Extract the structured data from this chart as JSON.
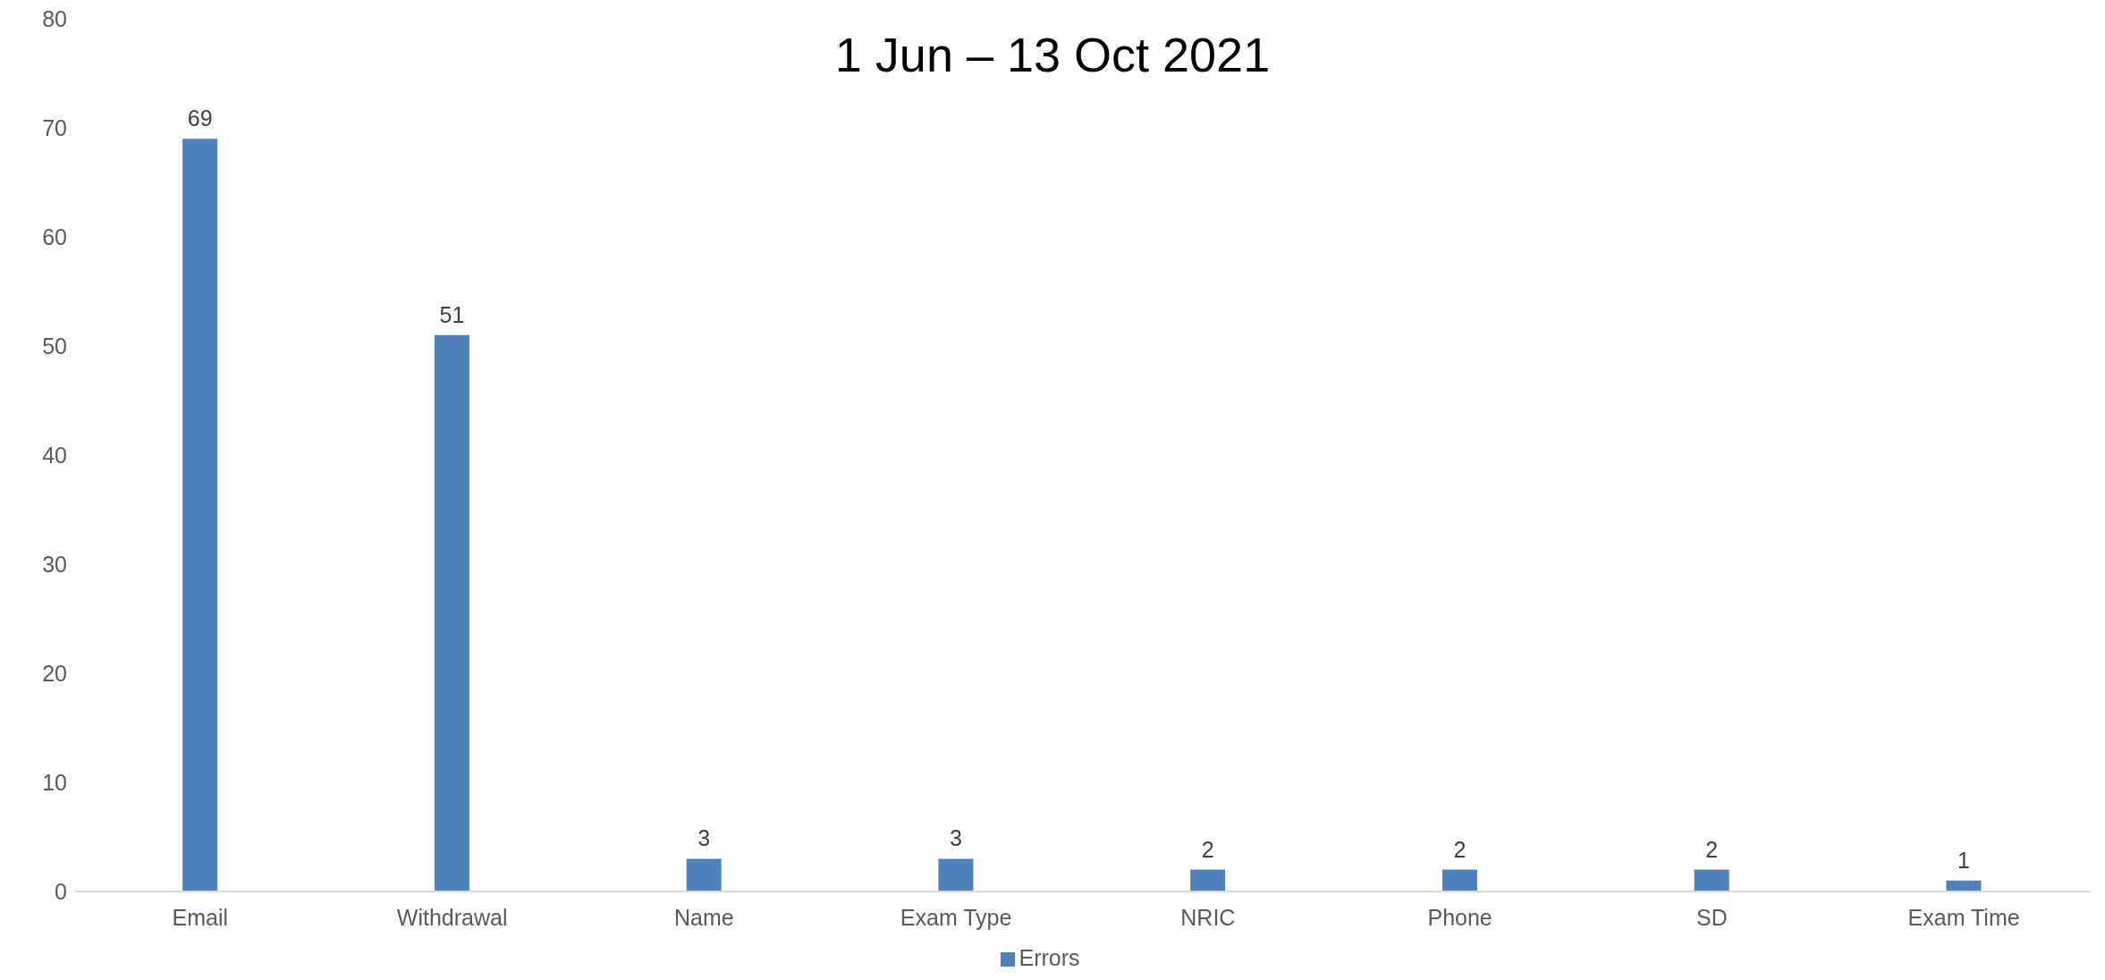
{
  "chart_data": {
    "type": "bar",
    "title": "1 Jun – 13 Oct 2021",
    "categories": [
      "Email",
      "Withdrawal",
      "Name",
      "Exam Type",
      "NRIC",
      "Phone",
      "SD",
      "Exam Time"
    ],
    "series": [
      {
        "name": "Errors",
        "color": "#4f81bd",
        "values": [
          69,
          51,
          3,
          3,
          2,
          2,
          2,
          1
        ]
      }
    ],
    "ylim": [
      0,
      80
    ],
    "yticks": [
      0,
      10,
      20,
      30,
      40,
      50,
      60,
      70,
      80
    ],
    "grid": false,
    "legend": "bottom",
    "data_labels": true
  }
}
